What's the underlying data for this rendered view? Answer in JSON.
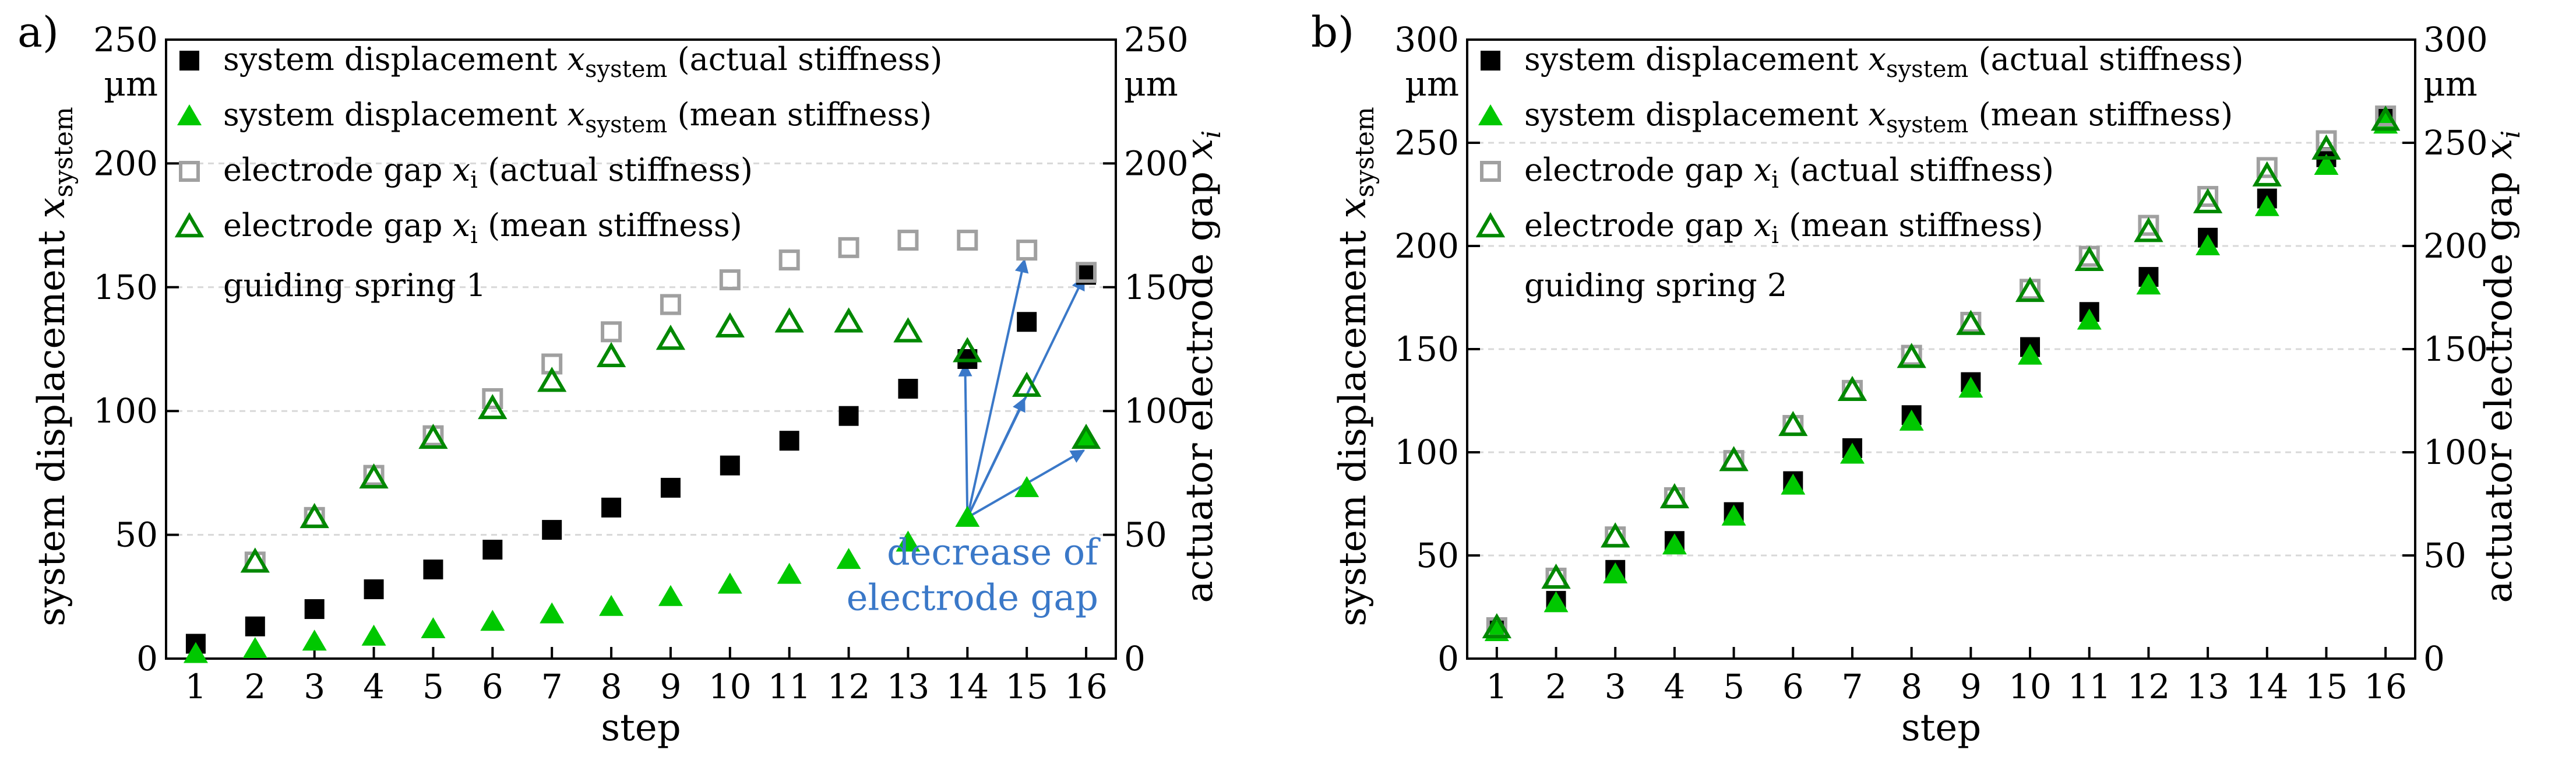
{
  "colors": {
    "actual_square": "#000000",
    "mean_triangle": "#00c800",
    "gap_square": "#a0a0a0",
    "gap_triangle": "#008800",
    "arrow": "#3a78c8",
    "grid": "#d8d8d8"
  },
  "chart_data": [
    {
      "type": "scatter",
      "panel_label": "a)",
      "xlabel": "step",
      "ylabel_left": "system displacement x_system",
      "ylabel_right": "actuator electrode gap x_i",
      "unit_label": "µm",
      "xlim": [
        0.5,
        16.5
      ],
      "ylim": [
        0,
        250
      ],
      "xticks": [
        1,
        2,
        3,
        4,
        5,
        6,
        7,
        8,
        9,
        10,
        11,
        12,
        13,
        14,
        15,
        16
      ],
      "yticks": [
        0,
        50,
        100,
        150,
        200,
        250
      ],
      "grid": true,
      "legend_position": "top-left",
      "note": "guiding spring 1",
      "annotation": {
        "lines": [
          "decrease of",
          "electrode gap"
        ],
        "target_step": 14,
        "arrow_targets": [
          {
            "x": 14,
            "y": 120
          },
          {
            "x": 15,
            "y": 106
          },
          {
            "x": 15,
            "y": 162
          },
          {
            "x": 16,
            "y": 85
          },
          {
            "x": 16,
            "y": 155
          }
        ]
      },
      "series": [
        {
          "name": "system displacement x_system (actual stiffness)",
          "label_main": "system displacement ",
          "label_var": "x",
          "label_sub": "system",
          "label_tail": " (actual stiffness)",
          "marker": "filled-square",
          "color": "#000000",
          "x": [
            1,
            2,
            3,
            4,
            5,
            6,
            7,
            8,
            9,
            10,
            11,
            12,
            13,
            14,
            15,
            16
          ],
          "values": [
            6,
            13,
            20,
            28,
            36,
            44,
            52,
            61,
            69,
            78,
            88,
            98,
            109,
            121,
            136,
            155
          ]
        },
        {
          "name": "system displacement x_system (mean stiffness)",
          "label_main": "system displacement ",
          "label_var": "x",
          "label_sub": "system",
          "label_tail": " (mean stiffness)",
          "marker": "filled-triangle",
          "color": "#00c800",
          "x": [
            1,
            2,
            3,
            4,
            5,
            6,
            7,
            8,
            9,
            10,
            11,
            12,
            13,
            14,
            15,
            16
          ],
          "values": [
            2,
            4,
            7,
            9,
            12,
            15,
            18,
            21,
            25,
            30,
            34,
            40,
            47,
            57,
            69,
            89
          ]
        },
        {
          "name": "electrode gap x_i (actual stiffness)",
          "label_main": "electrode gap ",
          "label_var": "x",
          "label_sub": "i",
          "label_tail": " (actual stiffness)",
          "marker": "open-square",
          "color": "#a0a0a0",
          "x": [
            1,
            2,
            3,
            4,
            5,
            6,
            7,
            8,
            9,
            10,
            11,
            12,
            13,
            14,
            15,
            16
          ],
          "values": [
            null,
            39,
            57,
            74,
            90,
            105,
            119,
            132,
            143,
            153,
            161,
            166,
            169,
            169,
            165,
            156
          ]
        },
        {
          "name": "electrode gap x_i (mean stiffness)",
          "label_main": "electrode gap ",
          "label_var": "x",
          "label_sub": "i",
          "label_tail": " (mean stiffness)",
          "marker": "open-triangle",
          "color": "#008800",
          "x": [
            1,
            2,
            3,
            4,
            5,
            6,
            7,
            8,
            9,
            10,
            11,
            12,
            13,
            14,
            15,
            16
          ],
          "values": [
            null,
            39,
            57,
            73,
            89,
            101,
            112,
            122,
            129,
            134,
            136,
            136,
            132,
            124,
            110,
            89
          ]
        }
      ]
    },
    {
      "type": "scatter",
      "panel_label": "b)",
      "xlabel": "step",
      "ylabel_left": "system displacement x_system",
      "ylabel_right": "actuator electrode gap x_i",
      "unit_label": "µm",
      "xlim": [
        0.5,
        16.5
      ],
      "ylim": [
        0,
        300
      ],
      "xticks": [
        1,
        2,
        3,
        4,
        5,
        6,
        7,
        8,
        9,
        10,
        11,
        12,
        13,
        14,
        15,
        16
      ],
      "yticks": [
        0,
        50,
        100,
        150,
        200,
        250,
        300
      ],
      "grid": true,
      "legend_position": "top-left",
      "note": "guiding spring 2",
      "series": [
        {
          "name": "system displacement x_system (actual stiffness)",
          "label_main": "system displacement ",
          "label_var": "x",
          "label_sub": "system",
          "label_tail": " (actual stiffness)",
          "marker": "filled-square",
          "color": "#000000",
          "x": [
            1,
            2,
            3,
            4,
            5,
            6,
            7,
            8,
            9,
            10,
            11,
            12,
            13,
            14,
            15,
            16
          ],
          "values": [
            14,
            28,
            43,
            57,
            71,
            86,
            102,
            118,
            134,
            151,
            168,
            185,
            204,
            223,
            243,
            263
          ]
        },
        {
          "name": "system displacement x_system (mean stiffness)",
          "label_main": "system displacement ",
          "label_var": "x",
          "label_sub": "system",
          "label_tail": " (mean stiffness)",
          "marker": "filled-triangle",
          "color": "#00c800",
          "x": [
            1,
            2,
            3,
            4,
            5,
            6,
            7,
            8,
            9,
            10,
            11,
            12,
            13,
            14,
            15,
            16
          ],
          "values": [
            13,
            27,
            41,
            55,
            69,
            84,
            99,
            115,
            131,
            147,
            164,
            181,
            200,
            219,
            239,
            259
          ]
        },
        {
          "name": "electrode gap x_i (actual stiffness)",
          "label_main": "electrode gap ",
          "label_var": "x",
          "label_sub": "i",
          "label_tail": " (actual stiffness)",
          "marker": "open-square",
          "color": "#a0a0a0",
          "x": [
            1,
            2,
            3,
            4,
            5,
            6,
            7,
            8,
            9,
            10,
            11,
            12,
            13,
            14,
            15,
            16
          ],
          "values": [
            15,
            39,
            59,
            78,
            96,
            113,
            130,
            147,
            163,
            179,
            195,
            210,
            224,
            238,
            251,
            263
          ]
        },
        {
          "name": "electrode gap x_i (mean stiffness)",
          "label_main": "electrode gap ",
          "label_var": "x",
          "label_sub": "i",
          "label_tail": " (mean stiffness)",
          "marker": "open-triangle",
          "color": "#008800",
          "x": [
            1,
            2,
            3,
            4,
            5,
            6,
            7,
            8,
            9,
            10,
            11,
            12,
            13,
            14,
            15,
            16
          ],
          "values": [
            15,
            39,
            59,
            78,
            96,
            113,
            130,
            146,
            162,
            178,
            193,
            207,
            221,
            234,
            247,
            261
          ]
        }
      ]
    }
  ]
}
